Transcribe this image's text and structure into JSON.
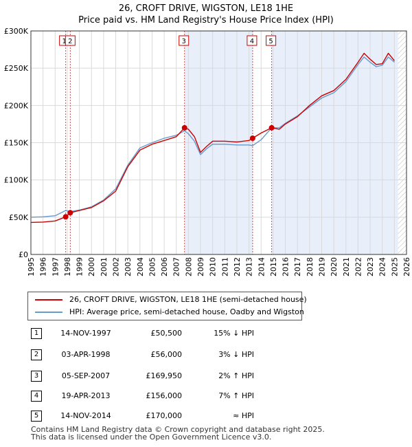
{
  "title_line1": "26, CROFT DRIVE, WIGSTON, LE18 1HE",
  "title_line2": "Price paid vs. HM Land Registry's House Price Index (HPI)",
  "chart_data": {
    "type": "line",
    "ylim": [
      0,
      300000
    ],
    "xlim": [
      1995,
      2026
    ],
    "y_ticks": [
      0,
      50000,
      100000,
      150000,
      200000,
      250000,
      300000
    ],
    "y_tick_labels": [
      "£0",
      "£50K",
      "£100K",
      "£150K",
      "£200K",
      "£250K",
      "£300K"
    ],
    "x_ticks": [
      1995,
      1996,
      1997,
      1998,
      1999,
      2000,
      2001,
      2002,
      2003,
      2004,
      2005,
      2006,
      2007,
      2008,
      2009,
      2010,
      2011,
      2012,
      2013,
      2014,
      2015,
      2016,
      2017,
      2018,
      2019,
      2020,
      2021,
      2022,
      2023,
      2024,
      2025,
      2026
    ],
    "grid": true,
    "shaded_periods": [
      [
        2007.68,
        2013.3
      ],
      [
        2014.87,
        2025.3
      ]
    ],
    "hatched_from": 2025.3,
    "series": [
      {
        "name": "26, CROFT DRIVE, WIGSTON, LE18 1HE (semi-detached house)",
        "color": "#cc0000",
        "points": [
          [
            1995.0,
            43000
          ],
          [
            1996.0,
            43500
          ],
          [
            1997.0,
            45000
          ],
          [
            1997.87,
            50500
          ],
          [
            1998.25,
            56000
          ],
          [
            1999.0,
            59000
          ],
          [
            2000.0,
            63000
          ],
          [
            2001.0,
            72000
          ],
          [
            2002.0,
            85000
          ],
          [
            2003.0,
            118000
          ],
          [
            2004.0,
            140000
          ],
          [
            2005.0,
            148000
          ],
          [
            2006.0,
            153000
          ],
          [
            2007.0,
            158000
          ],
          [
            2007.68,
            169950
          ],
          [
            2008.0,
            168000
          ],
          [
            2008.5,
            158000
          ],
          [
            2009.0,
            137000
          ],
          [
            2009.5,
            145000
          ],
          [
            2010.0,
            152000
          ],
          [
            2011.0,
            152000
          ],
          [
            2012.0,
            151000
          ],
          [
            2013.0,
            153000
          ],
          [
            2013.3,
            156000
          ],
          [
            2014.0,
            163000
          ],
          [
            2014.87,
            170000
          ],
          [
            2015.5,
            168000
          ],
          [
            2016.0,
            175000
          ],
          [
            2017.0,
            185000
          ],
          [
            2018.0,
            200000
          ],
          [
            2019.0,
            213000
          ],
          [
            2020.0,
            220000
          ],
          [
            2021.0,
            235000
          ],
          [
            2022.0,
            258000
          ],
          [
            2022.5,
            270000
          ],
          [
            2023.0,
            262000
          ],
          [
            2023.5,
            255000
          ],
          [
            2024.0,
            256000
          ],
          [
            2024.5,
            270000
          ],
          [
            2025.0,
            260000
          ]
        ]
      },
      {
        "name": "HPI: Average price, semi-detached house, Oadby and Wigston",
        "color": "#6699cc",
        "points": [
          [
            1995.0,
            50000
          ],
          [
            1996.0,
            50500
          ],
          [
            1997.0,
            52000
          ],
          [
            1997.87,
            59000
          ],
          [
            1998.25,
            57500
          ],
          [
            1999.0,
            59500
          ],
          [
            2000.0,
            64000
          ],
          [
            2001.0,
            73000
          ],
          [
            2002.0,
            88000
          ],
          [
            2003.0,
            120000
          ],
          [
            2004.0,
            143000
          ],
          [
            2005.0,
            150000
          ],
          [
            2006.0,
            156000
          ],
          [
            2007.0,
            160000
          ],
          [
            2007.68,
            166000
          ],
          [
            2008.0,
            162000
          ],
          [
            2008.5,
            152000
          ],
          [
            2009.0,
            134000
          ],
          [
            2009.5,
            142000
          ],
          [
            2010.0,
            148000
          ],
          [
            2011.0,
            148000
          ],
          [
            2012.0,
            147000
          ],
          [
            2013.0,
            147000
          ],
          [
            2013.3,
            146000
          ],
          [
            2014.0,
            154000
          ],
          [
            2014.87,
            170000
          ],
          [
            2015.5,
            170000
          ],
          [
            2016.0,
            176000
          ],
          [
            2017.0,
            186000
          ],
          [
            2018.0,
            198000
          ],
          [
            2019.0,
            210000
          ],
          [
            2020.0,
            217000
          ],
          [
            2021.0,
            232000
          ],
          [
            2022.0,
            255000
          ],
          [
            2022.5,
            265000
          ],
          [
            2023.0,
            258000
          ],
          [
            2023.5,
            252000
          ],
          [
            2024.0,
            254000
          ],
          [
            2024.5,
            265000
          ],
          [
            2025.0,
            258000
          ]
        ]
      }
    ],
    "sales": [
      {
        "label": "1",
        "x": 1997.87,
        "y": 50500
      },
      {
        "label": "2",
        "x": 1998.25,
        "y": 56000
      },
      {
        "label": "3",
        "x": 2007.68,
        "y": 169950
      },
      {
        "label": "4",
        "x": 2013.3,
        "y": 156000
      },
      {
        "label": "5",
        "x": 2014.87,
        "y": 170000
      }
    ]
  },
  "legend": {
    "items": [
      {
        "label": "26, CROFT DRIVE, WIGSTON, LE18 1HE (semi-detached house)",
        "color": "#cc0000"
      },
      {
        "label": "HPI: Average price, semi-detached house, Oadby and Wigston",
        "color": "#6699cc"
      }
    ]
  },
  "sales_table": [
    {
      "num": "1",
      "date": "14-NOV-1997",
      "price": "£50,500",
      "rel": "15% ↓ HPI"
    },
    {
      "num": "2",
      "date": "03-APR-1998",
      "price": "£56,000",
      "rel": "3% ↓ HPI"
    },
    {
      "num": "3",
      "date": "05-SEP-2007",
      "price": "£169,950",
      "rel": "2% ↑ HPI"
    },
    {
      "num": "4",
      "date": "19-APR-2013",
      "price": "£156,000",
      "rel": "7% ↑ HPI"
    },
    {
      "num": "5",
      "date": "14-NOV-2014",
      "price": "£170,000",
      "rel": "≈ HPI"
    }
  ],
  "footer": {
    "line1": "Contains HM Land Registry data © Crown copyright and database right 2025.",
    "line2": "This data is licensed under the Open Government Licence v3.0."
  }
}
